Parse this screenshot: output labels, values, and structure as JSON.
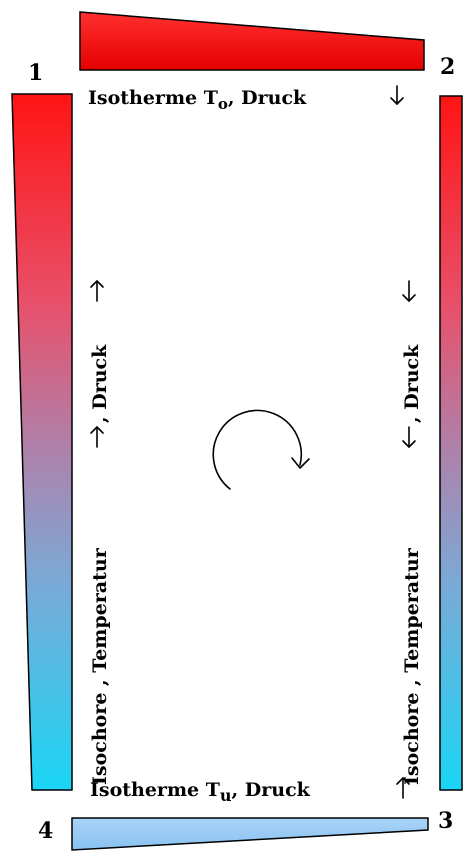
{
  "corners": {
    "c1": "1",
    "c2": "2",
    "c3": "3",
    "c4": "4"
  },
  "top_label": {
    "text": "Isotherme T",
    "subscript": "o",
    "suffix": ", Druck"
  },
  "bottom_label": {
    "text": "Isotherme T",
    "subscript": "u",
    "suffix": ", Druck"
  },
  "left_label": {
    "part1": "Isochore ,  Temperatur",
    "part2": ",   Druck"
  },
  "right_label": {
    "part1": "Isochore ,  Temperatur",
    "part2": ",   Druck"
  },
  "colors": {
    "hot": "#ff1a1a",
    "hot_dark": "#e80000",
    "mid": "#a291c3",
    "cold": "#1ed8f5",
    "cold_light": "#94c9f3",
    "outline": "#000000"
  },
  "icons": {
    "cycle": "clockwise-circular-arrow-icon",
    "up": "arrow-up-icon",
    "down": "arrow-down-icon"
  }
}
